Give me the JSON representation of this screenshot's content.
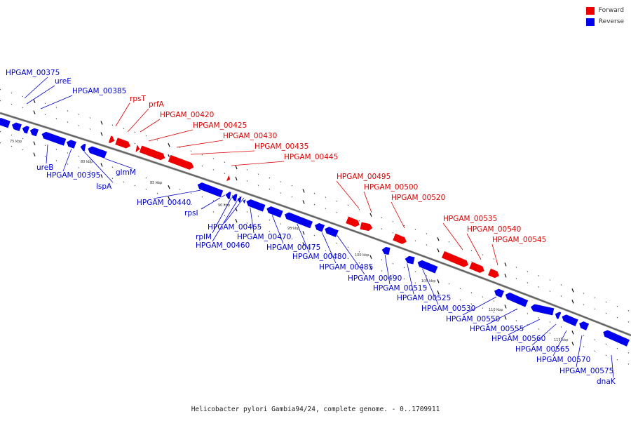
{
  "legend": {
    "forward": {
      "label": "Forward",
      "color": "#ee0000"
    },
    "reverse": {
      "label": "Reverse",
      "color": "#0000ee"
    }
  },
  "caption": "Helicobacter pylori Gambia94/24, complete genome. - 0..1709911",
  "scale_labels": [
    "75 kbp",
    "80 kbp",
    "85 kbp",
    "90 kbp",
    "95 kbp",
    "100 kbp",
    "105 kbp",
    "110 kbp",
    "115 kbp"
  ],
  "forward_genes": [
    "rpsT",
    "prfA",
    "HPGAM_00420",
    "HPGAM_00425",
    "HPGAM_00430",
    "HPGAM_00435",
    "HPGAM_00445",
    "HPGAM_00495",
    "HPGAM_00500",
    "HPGAM_00520",
    "HPGAM_00535",
    "HPGAM_00540",
    "HPGAM_00545"
  ],
  "reverse_genes_top": [
    "HPGAM_00375",
    "ureE",
    "HPGAM_00385"
  ],
  "reverse_genes": [
    "ureB",
    "HPGAM_00395",
    "lspA",
    "glmM",
    "HPGAM_00440",
    "rpsI",
    "rplM",
    "HPGAM_00460",
    "HPGAM_00465",
    "HPGAM_00470",
    "HPGAM_00475",
    "HPGAM_00480",
    "HPGAM_00485",
    "HPGAM_00490",
    "HPGAM_00515",
    "HPGAM_00525",
    "HPGAM_00530",
    "HPGAM_00550",
    "HPGAM_00555",
    "HPGAM_00560",
    "HPGAM_00565",
    "HPGAM_00570",
    "HPGAM_00575",
    "dnaK"
  ]
}
